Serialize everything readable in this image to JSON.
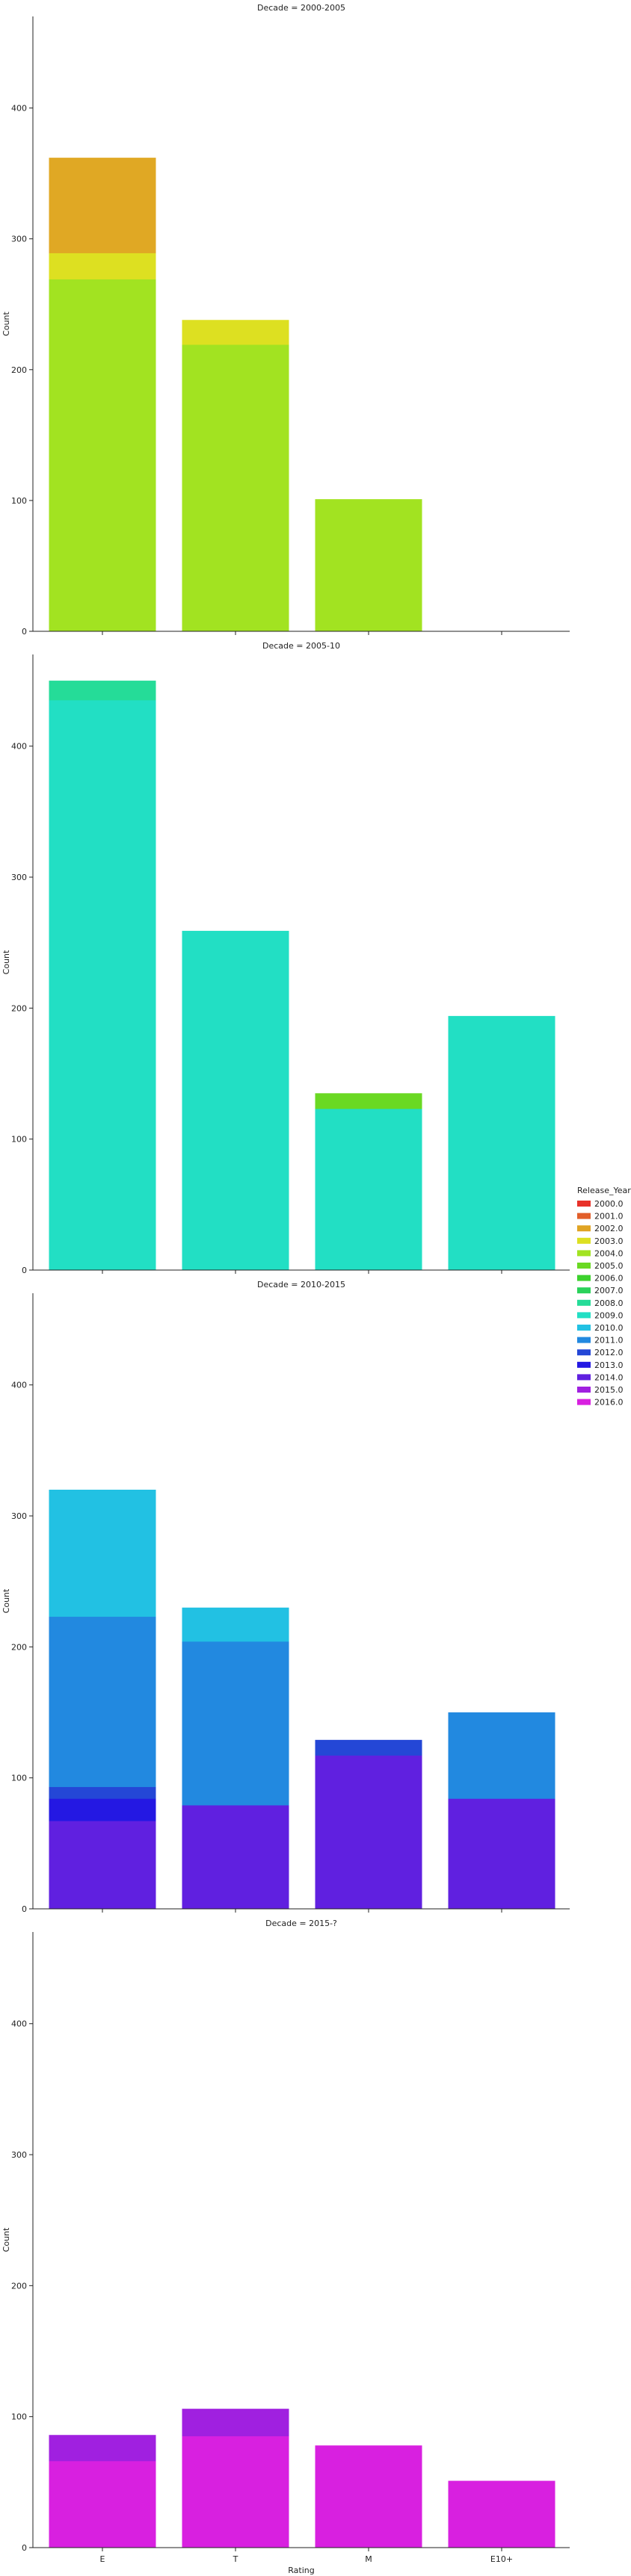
{
  "chart_data": {
    "type": "bar",
    "stacked_overlay": true,
    "facet_variable": "Decade",
    "categories": [
      "E",
      "T",
      "M",
      "E10+"
    ],
    "xlabel": "Rating",
    "ylabel": "Count",
    "ylim": [
      0,
      470
    ],
    "yticks": [
      0,
      100,
      200,
      300,
      400
    ],
    "grid": false,
    "legend": {
      "title": "Release_Year",
      "placement": "right",
      "entries": [
        {
          "label": "2000.0",
          "color": "#e8322a"
        },
        {
          "label": "2001.0",
          "color": "#e25f2a"
        },
        {
          "label": "2002.0",
          "color": "#e0a424"
        },
        {
          "label": "2003.0",
          "color": "#dde021"
        },
        {
          "label": "2004.0",
          "color": "#a2e321"
        },
        {
          "label": "2005.0",
          "color": "#6ad923"
        },
        {
          "label": "2006.0",
          "color": "#3dd22e"
        },
        {
          "label": "2007.0",
          "color": "#2ad25a"
        },
        {
          "label": "2008.0",
          "color": "#25dc98"
        },
        {
          "label": "2009.0",
          "color": "#22dfc4"
        },
        {
          "label": "2010.0",
          "color": "#22c1e3"
        },
        {
          "label": "2011.0",
          "color": "#2289e0"
        },
        {
          "label": "2012.0",
          "color": "#2447d6"
        },
        {
          "label": "2013.0",
          "color": "#2418e3"
        },
        {
          "label": "2014.0",
          "color": "#6020e0"
        },
        {
          "label": "2015.0",
          "color": "#a020e0"
        },
        {
          "label": "2016.0",
          "color": "#d820e0"
        }
      ]
    },
    "facets": [
      {
        "title": "Decade = 2000-2005",
        "bars": [
          {
            "category": "E",
            "layers": [
              {
                "year": "2002.0",
                "value": 362,
                "color": "#e0a824"
              },
              {
                "year": "2003.0",
                "value": 289,
                "color": "#dde021"
              },
              {
                "year": "2004.0",
                "value": 269,
                "color": "#a2e321"
              }
            ]
          },
          {
            "category": "T",
            "layers": [
              {
                "year": "2003.0",
                "value": 238,
                "color": "#dde021"
              },
              {
                "year": "2004.0",
                "value": 219,
                "color": "#a2e321"
              }
            ]
          },
          {
            "category": "M",
            "layers": [
              {
                "year": "2004.0",
                "value": 101,
                "color": "#a2e321"
              }
            ]
          },
          {
            "category": "E10+",
            "layers": []
          }
        ]
      },
      {
        "title": "Decade = 2005-10",
        "bars": [
          {
            "category": "E",
            "layers": [
              {
                "year": "2008.0",
                "value": 450,
                "color": "#25dc98"
              },
              {
                "year": "2009.0",
                "value": 435,
                "color": "#22dfc4"
              }
            ]
          },
          {
            "category": "T",
            "layers": [
              {
                "year": "2009.0",
                "value": 259,
                "color": "#22dfc4"
              }
            ]
          },
          {
            "category": "M",
            "layers": [
              {
                "year": "2005.0",
                "value": 135,
                "color": "#6ad923"
              },
              {
                "year": "2009.0",
                "value": 123,
                "color": "#22dfc4"
              }
            ]
          },
          {
            "category": "E10+",
            "layers": [
              {
                "year": "2009.0",
                "value": 194,
                "color": "#22dfc4"
              }
            ]
          }
        ]
      },
      {
        "title": "Decade = 2010-2015",
        "bars": [
          {
            "category": "E",
            "layers": [
              {
                "year": "2010.0",
                "value": 320,
                "color": "#22c1e3"
              },
              {
                "year": "2011.0",
                "value": 223,
                "color": "#2289e0"
              },
              {
                "year": "2012.0",
                "value": 93,
                "color": "#2447d6"
              },
              {
                "year": "2013.0",
                "value": 84,
                "color": "#2418e3"
              },
              {
                "year": "2014.0",
                "value": 67,
                "color": "#6020e0"
              }
            ]
          },
          {
            "category": "T",
            "layers": [
              {
                "year": "2010.0",
                "value": 230,
                "color": "#22c1e3"
              },
              {
                "year": "2011.0",
                "value": 204,
                "color": "#2289e0"
              },
              {
                "year": "2014.0",
                "value": 79,
                "color": "#6020e0"
              }
            ]
          },
          {
            "category": "M",
            "layers": [
              {
                "year": "2012.0",
                "value": 129,
                "color": "#2447d6"
              },
              {
                "year": "2014.0",
                "value": 117,
                "color": "#6020e0"
              }
            ]
          },
          {
            "category": "E10+",
            "layers": [
              {
                "year": "2011.0",
                "value": 150,
                "color": "#2289e0"
              },
              {
                "year": "2014.0",
                "value": 84,
                "color": "#6020e0"
              }
            ]
          }
        ]
      },
      {
        "title": "Decade = 2015-?",
        "bars": [
          {
            "category": "E",
            "layers": [
              {
                "year": "2015.0",
                "value": 86,
                "color": "#a020e0"
              },
              {
                "year": "2016.0",
                "value": 66,
                "color": "#d820e0"
              }
            ]
          },
          {
            "category": "T",
            "layers": [
              {
                "year": "2015.0",
                "value": 106,
                "color": "#a020e0"
              },
              {
                "year": "2016.0",
                "value": 85,
                "color": "#d820e0"
              }
            ]
          },
          {
            "category": "M",
            "layers": [
              {
                "year": "2016.0",
                "value": 78,
                "color": "#d820e0"
              }
            ]
          },
          {
            "category": "E10+",
            "layers": [
              {
                "year": "2016.0",
                "value": 51,
                "color": "#d820e0"
              }
            ]
          }
        ]
      }
    ]
  }
}
